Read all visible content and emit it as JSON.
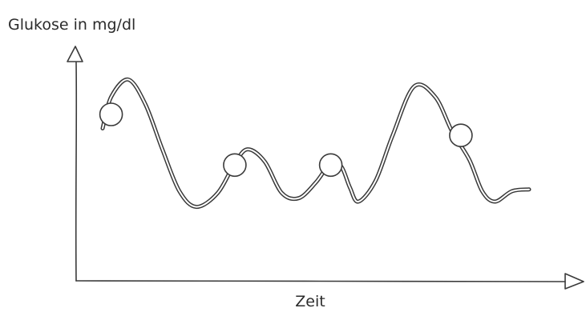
{
  "chart_data": {
    "type": "line",
    "ylabel": "Glukose in mg/dl",
    "xlabel": "Zeit",
    "grid": false,
    "legend": "none",
    "style": "hand-drawn sketch, double-stroke line",
    "colors": {
      "line": "#3a3a3a",
      "marker_fill": "#ffffff",
      "marker_stroke": "#3a3a3a",
      "axis": "#3a3a3a"
    },
    "curve": [
      [
        0.0,
        0.64
      ],
      [
        0.02,
        0.82
      ],
      [
        0.06,
        0.92
      ],
      [
        0.1,
        0.78
      ],
      [
        0.14,
        0.52
      ],
      [
        0.18,
        0.28
      ],
      [
        0.22,
        0.19
      ],
      [
        0.27,
        0.27
      ],
      [
        0.31,
        0.44
      ],
      [
        0.34,
        0.52
      ],
      [
        0.38,
        0.45
      ],
      [
        0.42,
        0.27
      ],
      [
        0.46,
        0.24
      ],
      [
        0.5,
        0.33
      ],
      [
        0.535,
        0.44
      ],
      [
        0.56,
        0.42
      ],
      [
        0.58,
        0.3
      ],
      [
        0.6,
        0.22
      ],
      [
        0.64,
        0.34
      ],
      [
        0.68,
        0.6
      ],
      [
        0.73,
        0.88
      ],
      [
        0.78,
        0.82
      ],
      [
        0.82,
        0.62
      ],
      [
        0.86,
        0.46
      ],
      [
        0.89,
        0.28
      ],
      [
        0.92,
        0.22
      ],
      [
        0.96,
        0.28
      ],
      [
        1.0,
        0.29
      ]
    ],
    "markers": [
      [
        0.02,
        0.72
      ],
      [
        0.31,
        0.43
      ],
      [
        0.535,
        0.43
      ],
      [
        0.84,
        0.6
      ]
    ]
  }
}
